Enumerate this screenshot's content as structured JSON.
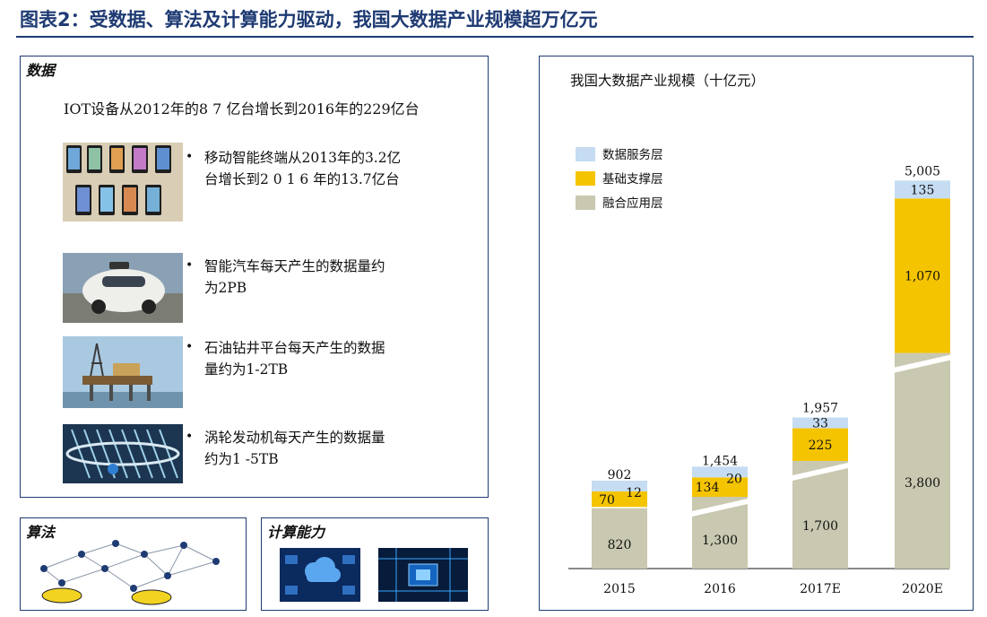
{
  "page": {
    "title": "图表2：受数据、算法及计算能力驱动，我国大数据产业规模超万亿元"
  },
  "data_panel": {
    "heading": "数据",
    "iot_line": "IOT设备从2012年的8 7 亿台增长到2016年的229亿台",
    "bullets": [
      {
        "line1": "移动智能终端从2013年的3.2亿",
        "line2": "台增长到2 0 1 6 年的13.7亿台"
      },
      {
        "line1": "智能汽车每天产生的数据量约",
        "line2": "为2PB"
      },
      {
        "line1": "石油钻井平台每天产生的数据",
        "line2": "量约为1-2TB"
      },
      {
        "line1": "涡轮发动机每天产生的数据量",
        "line2": "约为1 -5TB"
      }
    ],
    "bullet_symbol": "•"
  },
  "algo_panel": {
    "heading": "算法"
  },
  "compute_panel": {
    "heading": "计算能力"
  },
  "chart_data": {
    "type": "bar",
    "stacked": true,
    "title": "我国大数据产业规模（十亿元）",
    "categories": [
      "2015",
      "2016",
      "2017E",
      "2020E"
    ],
    "series": [
      {
        "name": "融合应用层",
        "values": [
          820,
          1300,
          1700,
          3800
        ],
        "color": "#c9c8b0"
      },
      {
        "name": "基础支撑层",
        "values": [
          70,
          134,
          225,
          1070
        ],
        "color": "#f5c400"
      },
      {
        "name": "数据服务层",
        "values": [
          12,
          20,
          33,
          135
        ],
        "color": "#c5dcf2"
      }
    ],
    "totals": [
      "902",
      "1,454",
      "1,957",
      "5,005"
    ],
    "value_labels": [
      [
        "820",
        "1,300",
        "1,700",
        "3,800"
      ],
      [
        "70",
        "134",
        "225",
        "1,070"
      ],
      [
        "12",
        "20",
        "33",
        "135"
      ]
    ],
    "legend": [
      "数据服务层",
      "基础支撑层",
      "融合应用层"
    ],
    "legend_position": "top-left",
    "axis_break": true,
    "grid": false
  }
}
